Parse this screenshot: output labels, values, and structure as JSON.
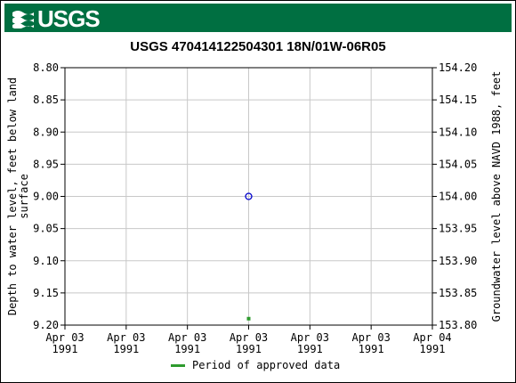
{
  "header": {
    "agency_logo_text": "USGS",
    "logo_icon": "usgs-wave-icon",
    "banner_color": "#006f41"
  },
  "chart_data": {
    "type": "scatter",
    "title": "USGS 470414122504301 18N/01W-06R05",
    "ylabel_left_line1": "Depth to water level, feet below land",
    "ylabel_left_line2": "surface",
    "ylabel_right": "Groundwater level above NAVD 1988, feet",
    "yticks_left": [
      "8.80",
      "8.85",
      "8.90",
      "8.95",
      "9.00",
      "9.05",
      "9.10",
      "9.15",
      "9.20"
    ],
    "yticks_right": [
      "154.20",
      "154.15",
      "154.10",
      "154.05",
      "154.00",
      "153.95",
      "153.90",
      "153.85",
      "153.80"
    ],
    "ylim_left": [
      8.8,
      9.2
    ],
    "ylim_right": [
      153.8,
      154.2
    ],
    "inverted_left_axis": true,
    "xticks": [
      {
        "line1": "Apr 03",
        "line2": "1991"
      },
      {
        "line1": "Apr 03",
        "line2": "1991"
      },
      {
        "line1": "Apr 03",
        "line2": "1991"
      },
      {
        "line1": "Apr 03",
        "line2": "1991"
      },
      {
        "line1": "Apr 03",
        "line2": "1991"
      },
      {
        "line1": "Apr 03",
        "line2": "1991"
      },
      {
        "line1": "Apr 04",
        "line2": "1991"
      }
    ],
    "grid": true,
    "points": [
      {
        "x_fraction_of_day": 0.5,
        "depth": 9.0,
        "marker": "open-circle",
        "color": "#0000cc"
      }
    ],
    "approved_period_markers": [
      {
        "x_fraction_of_day": 0.5,
        "depth": 9.19,
        "color": "#2e9b2e"
      }
    ],
    "legend": {
      "placement": "bottom-center",
      "label": "Period of approved data",
      "color": "#2e9b2e"
    }
  }
}
